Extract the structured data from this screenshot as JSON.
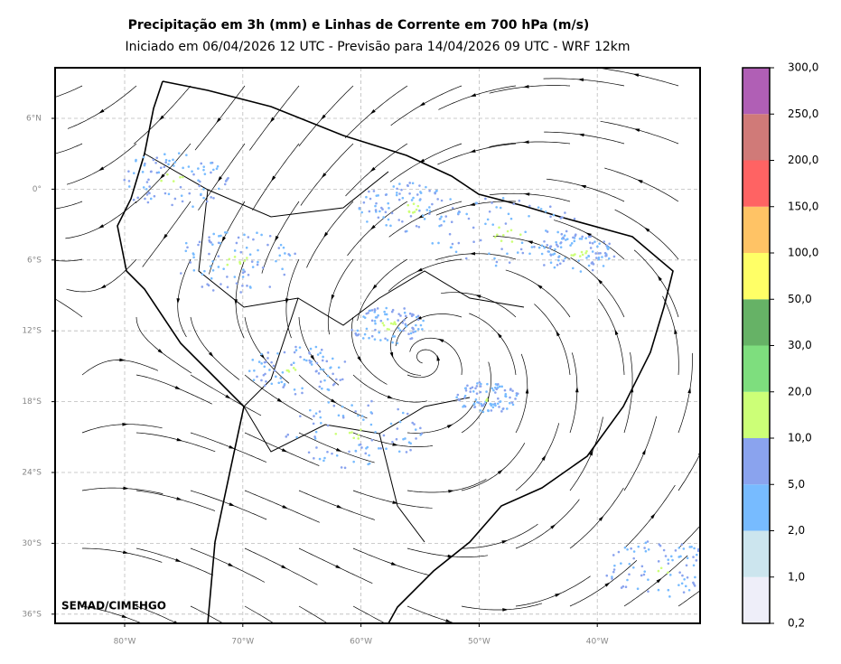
{
  "header": {
    "title": "Precipitação em 3h (mm) e Linhas de Corrente em 700 hPa (m/s)",
    "subtitle": "Iniciado em 06/04/2026 12 UTC - Previsão para 14/04/2026 09 UTC - WRF 12km"
  },
  "map": {
    "lat_labels": [
      "6°N",
      "0°",
      "6°S",
      "12°S",
      "18°S",
      "24°S",
      "30°S",
      "36°S"
    ],
    "lon_labels": [
      "80°W",
      "70°W",
      "60°W",
      "50°W",
      "40°W"
    ],
    "credit": "SEMAD/CIMEHGO"
  },
  "colorbar": {
    "labels": [
      "0,2",
      "1,0",
      "2,0",
      "5,0",
      "10,0",
      "20,0",
      "30,0",
      "50,0",
      "100,0",
      "150,0",
      "200,0",
      "250,0",
      "300,0"
    ],
    "colors": [
      "#eeeef9",
      "#cce5ee",
      "#77bbff",
      "#8aa3ee",
      "#ccff77",
      "#7ede7e",
      "#66b266",
      "#ffff66",
      "#ffc365",
      "#ff6363",
      "#d07a78",
      "#b05fb5"
    ]
  }
}
